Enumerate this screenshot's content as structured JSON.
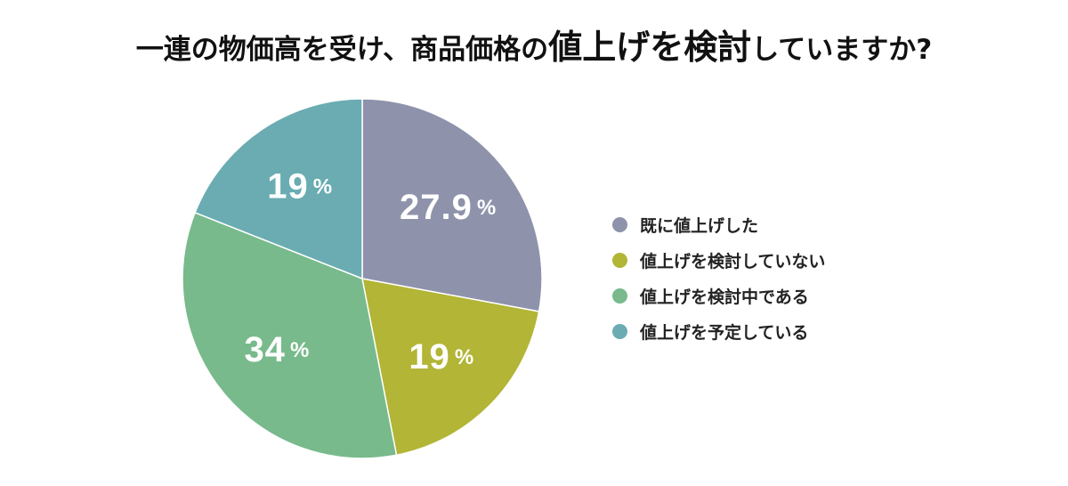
{
  "title": {
    "part1": "一連の物価高を受け、商品価格の",
    "part2": "値上げを検討",
    "part3": "していますか?"
  },
  "chart_data": {
    "type": "pie",
    "title": "一連の物価高を受け、商品価格の値上げを検討していますか?",
    "categories": [
      "既に値上げした",
      "値上げを検討していない",
      "値上げを検討中である",
      "値上げを予定している"
    ],
    "values": [
      27.9,
      19,
      34,
      19
    ],
    "value_labels": [
      "27.9",
      "19",
      "34",
      "19"
    ],
    "unit": "%",
    "colors": [
      "#8e93ab",
      "#b2b535",
      "#78ba8b",
      "#6aacb2"
    ],
    "start_angle_deg": 0,
    "direction": "clockwise",
    "legend_position": "right"
  },
  "legend": {
    "items": [
      {
        "label": "既に値上げした",
        "color": "#8e93ab"
      },
      {
        "label": "値上げを検討していない",
        "color": "#b2b535"
      },
      {
        "label": "値上げを検討中である",
        "color": "#78ba8b"
      },
      {
        "label": "値上げを予定している",
        "color": "#6aacb2"
      }
    ]
  }
}
